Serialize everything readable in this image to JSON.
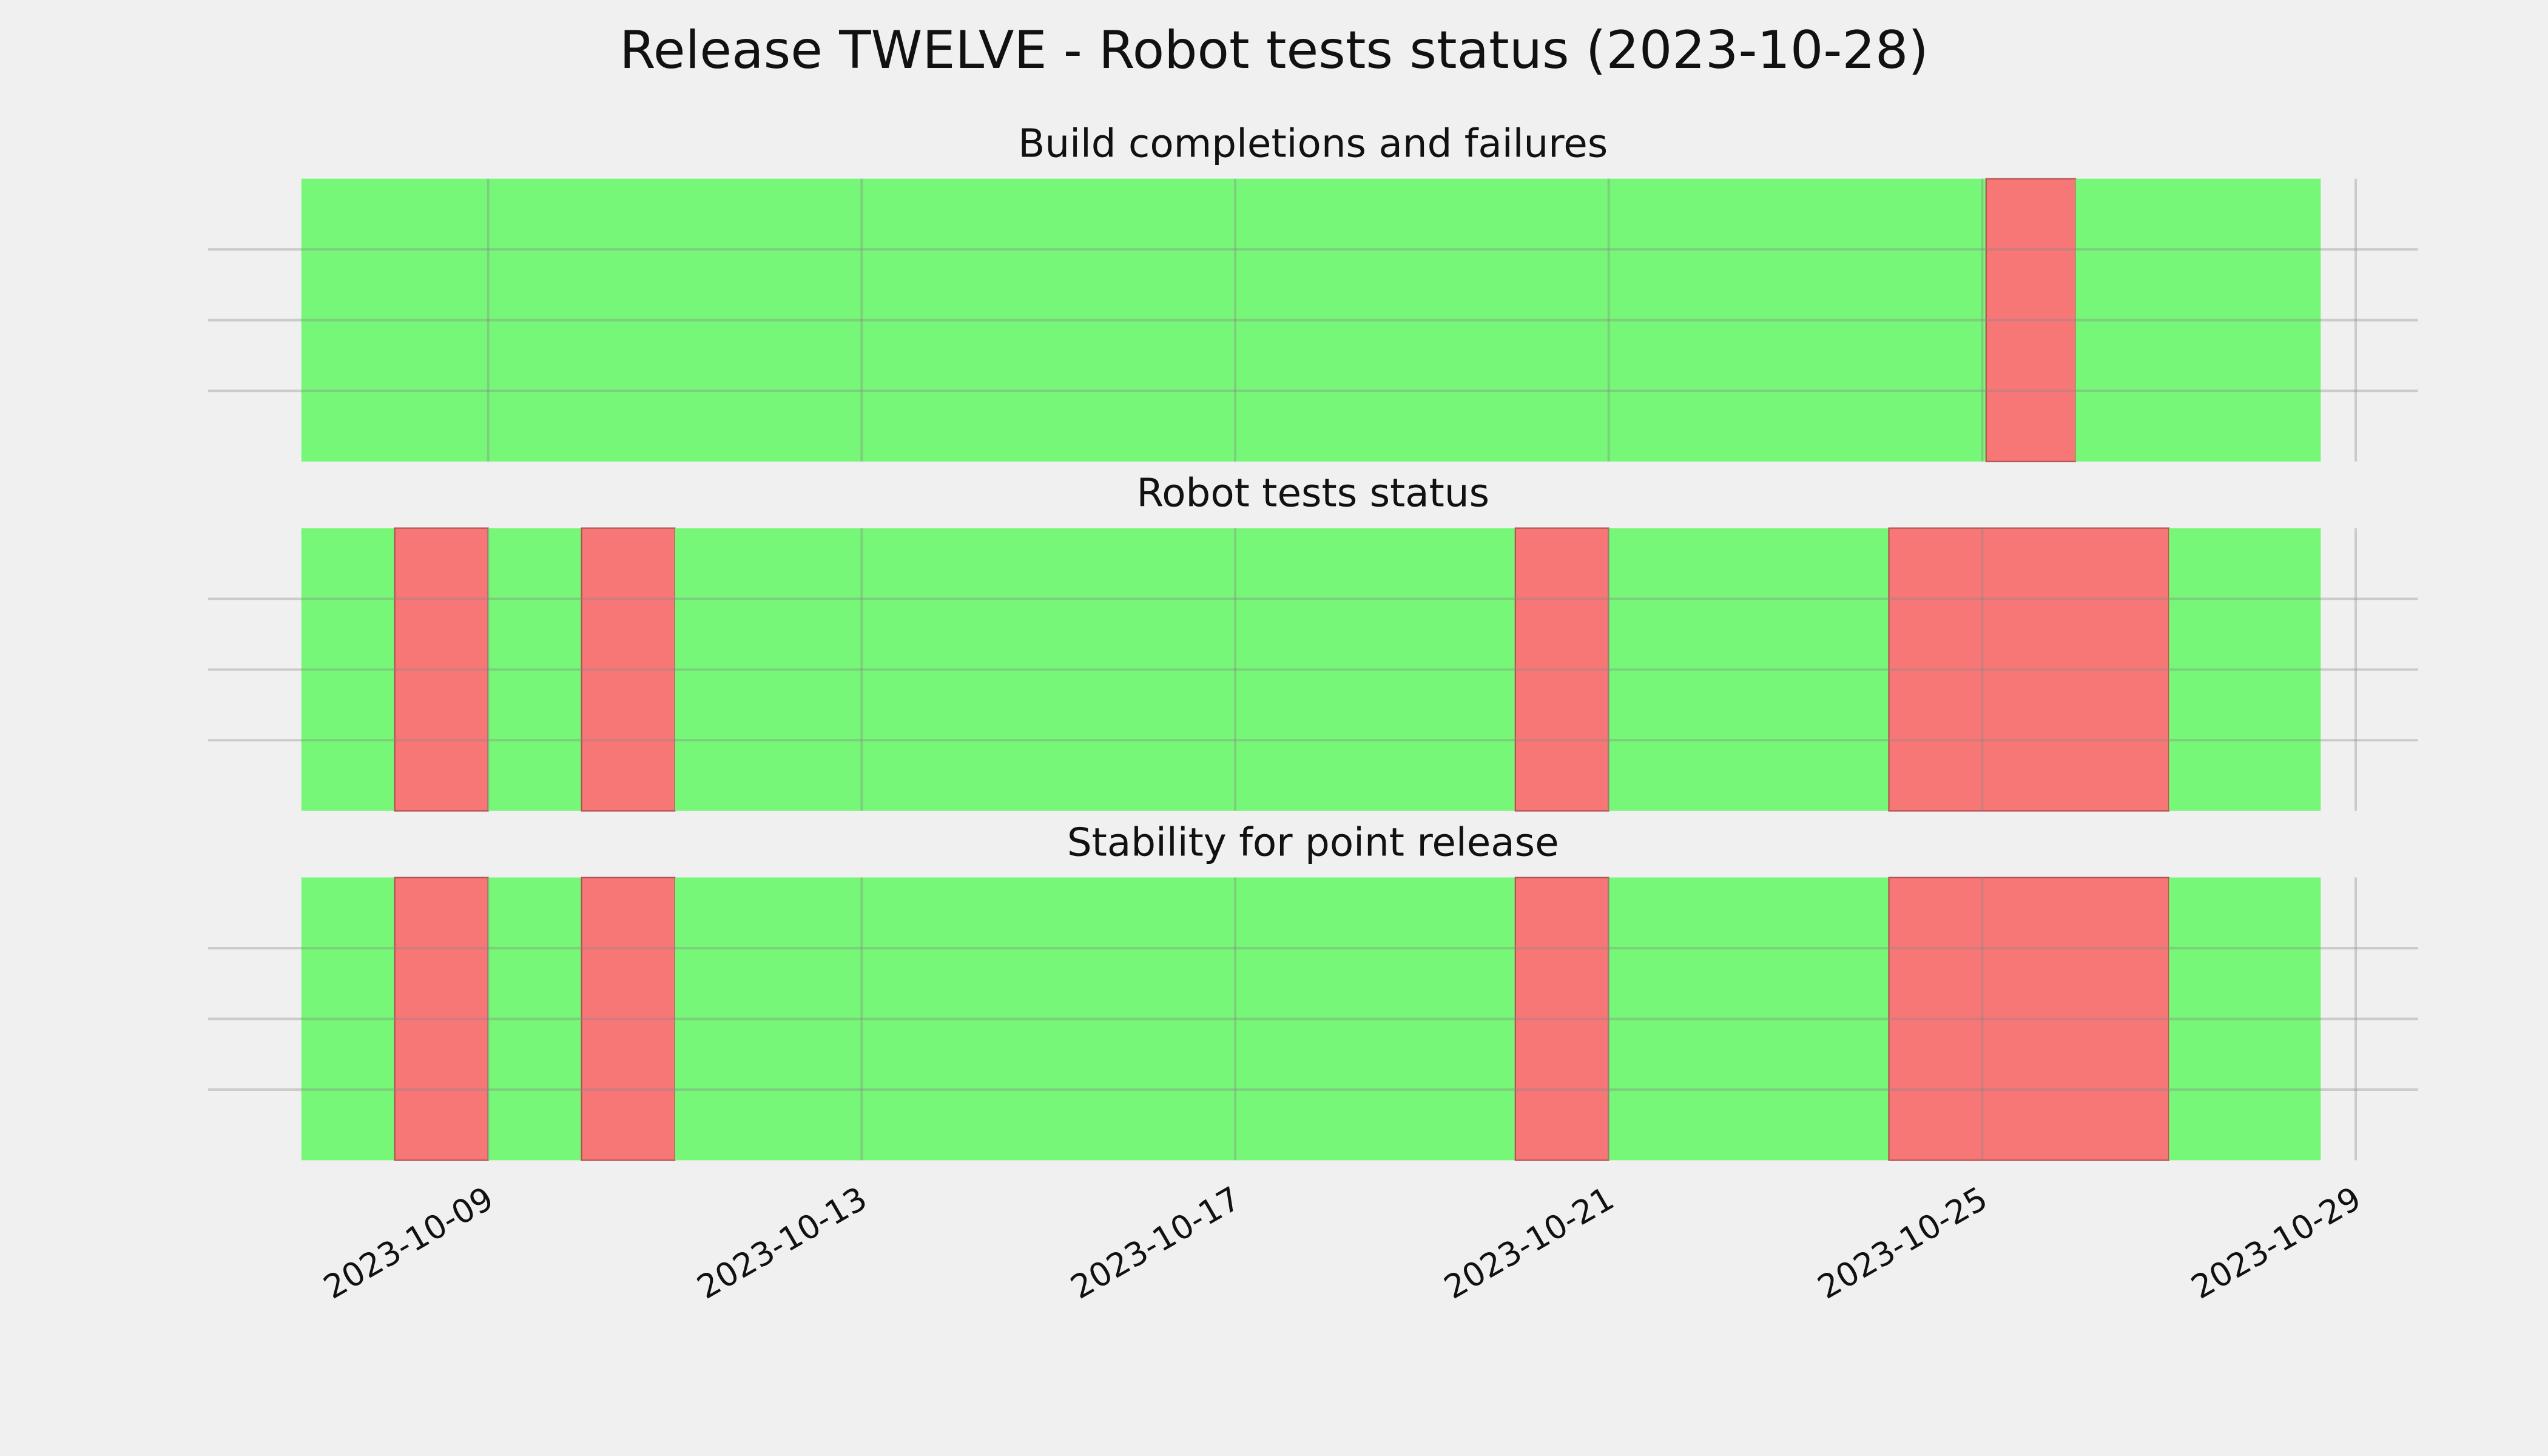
{
  "title": "Release TWELVE - Robot tests status (2023-10-28)",
  "chart_data": [
    {
      "type": "timeline",
      "title": "Build completions and failures",
      "x": [
        "2023-10-07",
        "2023-10-25T01:00",
        "2023-10-26"
      ],
      "x_end": [
        "2023-10-25T01:00",
        "2023-10-26",
        "2023-10-28T15:00"
      ],
      "colors": [
        "#77f777",
        "#f77777",
        "#77f777"
      ],
      "xlim": [
        "2023-10-06",
        "2023-10-29T16:00"
      ],
      "xticks": [
        "2023-10-09",
        "2023-10-13",
        "2023-10-17",
        "2023-10-21",
        "2023-10-25",
        "2023-10-29"
      ],
      "ylim": [
        0,
        1
      ],
      "yticks": [
        0.25,
        0.5,
        0.75
      ],
      "grid": true
    },
    {
      "type": "timeline",
      "title": "Robot tests status",
      "x": [
        "2023-10-07",
        "2023-10-08",
        "2023-10-09",
        "2023-10-10",
        "2023-10-11",
        "2023-10-20",
        "2023-10-21",
        "2023-10-24",
        "2023-10-27"
      ],
      "x_end": [
        "2023-10-08",
        "2023-10-09",
        "2023-10-10",
        "2023-10-11",
        "2023-10-20",
        "2023-10-21",
        "2023-10-24",
        "2023-10-27",
        "2023-10-28T15:00"
      ],
      "colors": [
        "#77f777",
        "#f77777",
        "#77f777",
        "#f77777",
        "#77f777",
        "#f77777",
        "#77f777",
        "#f77777",
        "#77f777"
      ],
      "xlim": [
        "2023-10-06",
        "2023-10-29T16:00"
      ],
      "xticks": [
        "2023-10-09",
        "2023-10-13",
        "2023-10-17",
        "2023-10-21",
        "2023-10-25",
        "2023-10-29"
      ],
      "ylim": [
        0,
        1
      ],
      "yticks": [
        0.25,
        0.5,
        0.75
      ],
      "grid": true
    },
    {
      "type": "timeline",
      "title": "Stability for point release",
      "x": [
        "2023-10-07",
        "2023-10-08",
        "2023-10-09",
        "2023-10-10",
        "2023-10-11",
        "2023-10-20",
        "2023-10-21",
        "2023-10-24",
        "2023-10-27"
      ],
      "x_end": [
        "2023-10-08",
        "2023-10-09",
        "2023-10-10",
        "2023-10-11",
        "2023-10-20",
        "2023-10-21",
        "2023-10-24",
        "2023-10-27",
        "2023-10-28T15:00"
      ],
      "colors": [
        "#77f777",
        "#f77777",
        "#77f777",
        "#f77777",
        "#77f777",
        "#f77777",
        "#77f777",
        "#f77777",
        "#77f777"
      ],
      "xlim": [
        "2023-10-06",
        "2023-10-29T16:00"
      ],
      "xticks": [
        "2023-10-09",
        "2023-10-13",
        "2023-10-17",
        "2023-10-21",
        "2023-10-25",
        "2023-10-29"
      ],
      "ylim": [
        0,
        1
      ],
      "yticks": [
        0.25,
        0.5,
        0.75
      ],
      "grid": true
    }
  ]
}
